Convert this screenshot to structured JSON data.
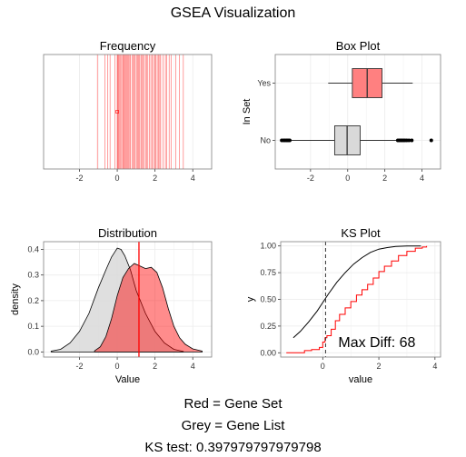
{
  "page": {
    "title": "GSEA Visualization",
    "caption_lines": [
      "Red = Gene Set",
      "Grey = Gene List",
      "KS test: 0.397979797979798"
    ]
  },
  "colors": {
    "gene_set": "#ff0000",
    "gene_set_fill": "#ff8080",
    "gene_list_fill": "#d9d9d9",
    "panel_bg": "#ffffff",
    "grid": "#ebebeb",
    "outline": "#000000"
  },
  "chart_data": [
    {
      "id": "frequency",
      "type": "rug",
      "title": "Frequency",
      "xlabel": "",
      "ylabel": "",
      "xlim": [
        -3.9,
        5.0
      ],
      "x_ticks": [
        -2,
        0,
        2,
        4
      ],
      "x_tick_labels": [
        "-2",
        "0",
        "2",
        "4"
      ],
      "grid": true,
      "lines": [
        -1.05,
        -0.65,
        -0.5,
        -0.38,
        -0.12,
        0.0,
        0.02,
        0.06,
        0.1,
        0.15,
        0.2,
        0.28,
        0.32,
        0.36,
        0.4,
        0.45,
        0.5,
        0.55,
        0.6,
        0.66,
        0.7,
        0.78,
        0.85,
        0.9,
        0.95,
        1.02,
        1.08,
        1.12,
        1.18,
        1.25,
        1.3,
        1.35,
        1.42,
        1.5,
        1.55,
        1.62,
        1.7,
        1.78,
        1.85,
        1.92,
        2.0,
        2.05,
        2.12,
        2.18,
        2.25,
        2.3,
        2.42,
        2.55,
        2.62,
        2.75,
        2.85,
        3.1,
        3.3,
        3.5
      ],
      "marker": {
        "x": 0.0,
        "y_fraction": 0.5
      }
    },
    {
      "id": "boxplot",
      "type": "box",
      "title": "Box Plot",
      "xlabel": "",
      "ylabel": "In Set",
      "xlim": [
        -3.9,
        5.0
      ],
      "x_ticks": [
        -2,
        0,
        2,
        4
      ],
      "x_tick_labels": [
        "-2",
        "0",
        "2",
        "4"
      ],
      "categories": [
        "Yes",
        "No"
      ],
      "grid": true,
      "boxes": [
        {
          "category": "Yes",
          "whisker_low": -1.05,
          "q1": 0.25,
          "median": 1.05,
          "q3": 1.85,
          "whisker_high": 3.5,
          "outliers": []
        },
        {
          "category": "No",
          "whisker_low": -3.1,
          "q1": -0.7,
          "median": -0.03,
          "q3": 0.67,
          "whisker_high": 2.65,
          "outliers": [
            -3.55,
            -3.45,
            -3.38,
            -3.3,
            -3.25,
            -3.18,
            -3.12,
            2.7,
            2.78,
            2.85,
            2.92,
            3.0,
            3.08,
            3.18,
            3.3,
            3.45,
            4.5
          ]
        }
      ]
    },
    {
      "id": "distribution",
      "type": "area",
      "title": "Distribution",
      "xlabel": "Value",
      "ylabel": "density",
      "xlim": [
        -3.9,
        5.0
      ],
      "ylim": [
        -0.02,
        0.43
      ],
      "x_ticks": [
        -2,
        0,
        2,
        4
      ],
      "x_tick_labels": [
        "-2",
        "0",
        "2",
        "4"
      ],
      "y_ticks": [
        0.0,
        0.1,
        0.2,
        0.3,
        0.4
      ],
      "y_tick_labels": [
        "0.0",
        "0.1",
        "0.2",
        "0.3",
        "0.4"
      ],
      "grid": true,
      "series": [
        {
          "role": "gene_list",
          "x": [
            -3.5,
            -3.0,
            -2.5,
            -2.0,
            -1.5,
            -1.0,
            -0.6,
            -0.3,
            0.0,
            0.2,
            0.4,
            0.7,
            1.0,
            1.5,
            2.0,
            2.5,
            3.0,
            3.5
          ],
          "y": [
            0.003,
            0.01,
            0.035,
            0.08,
            0.15,
            0.25,
            0.32,
            0.37,
            0.405,
            0.4,
            0.375,
            0.32,
            0.24,
            0.15,
            0.08,
            0.035,
            0.01,
            0.002
          ]
        },
        {
          "role": "gene_set",
          "x": [
            -1.2,
            -0.9,
            -0.6,
            -0.3,
            0.0,
            0.3,
            0.6,
            0.9,
            1.2,
            1.5,
            1.8,
            2.1,
            2.4,
            2.7,
            3.0,
            3.3,
            3.6,
            4.0,
            4.5
          ],
          "y": [
            0.004,
            0.02,
            0.06,
            0.13,
            0.22,
            0.29,
            0.325,
            0.345,
            0.335,
            0.325,
            0.33,
            0.31,
            0.25,
            0.17,
            0.1,
            0.055,
            0.03,
            0.012,
            0.003
          ]
        }
      ],
      "vline": 1.15
    },
    {
      "id": "ks",
      "type": "line",
      "title": "KS Plot",
      "xlabel": "value",
      "ylabel": "y",
      "xlim": [
        -1.5,
        4.2
      ],
      "ylim": [
        -0.04,
        1.04
      ],
      "x_ticks": [
        0,
        2,
        4
      ],
      "x_tick_labels": [
        "0",
        "2",
        "4"
      ],
      "y_ticks": [
        0.0,
        0.25,
        0.5,
        0.75,
        1.0
      ],
      "y_tick_labels": [
        "0.00",
        "0.25",
        "0.50",
        "0.75",
        "1.00"
      ],
      "grid": true,
      "series": [
        {
          "role": "gene_list_cdf",
          "x": [
            -1.05,
            -0.8,
            -0.5,
            -0.2,
            0.0,
            0.2,
            0.5,
            0.8,
            1.1,
            1.4,
            1.7,
            2.0,
            2.3,
            2.6,
            3.0,
            3.5
          ],
          "y": [
            0.14,
            0.2,
            0.29,
            0.39,
            0.47,
            0.55,
            0.66,
            0.75,
            0.83,
            0.89,
            0.94,
            0.97,
            0.985,
            0.995,
            1.0,
            1.0
          ]
        },
        {
          "role": "gene_set_ecdf",
          "x": [
            -1.3,
            -1.05,
            -0.65,
            -0.4,
            -0.12,
            0.0,
            0.08,
            0.15,
            0.3,
            0.45,
            0.6,
            0.8,
            1.0,
            1.2,
            1.4,
            1.6,
            1.8,
            2.0,
            2.2,
            2.45,
            2.7,
            3.0,
            3.3,
            3.55,
            3.7
          ],
          "y": [
            0.0,
            0.0,
            0.02,
            0.03,
            0.05,
            0.1,
            0.14,
            0.16,
            0.22,
            0.3,
            0.36,
            0.42,
            0.48,
            0.54,
            0.59,
            0.64,
            0.7,
            0.76,
            0.81,
            0.86,
            0.91,
            0.95,
            0.98,
            0.99,
            1.0
          ],
          "step": true
        }
      ],
      "vline_dashed": 0.1,
      "annotation": "Max Diff: 68"
    }
  ]
}
